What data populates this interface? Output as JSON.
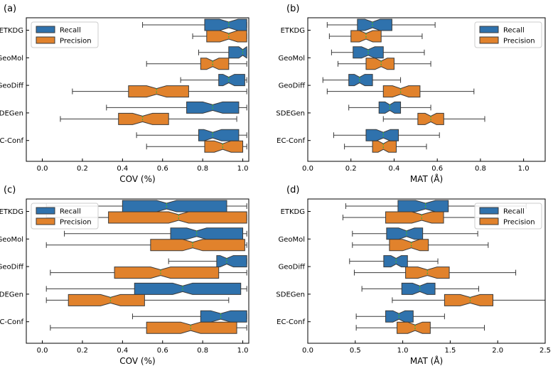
{
  "colors": {
    "recall": "#2f72ad",
    "precision": "#e1822c",
    "median": "#3db13d"
  },
  "chart_data": [
    {
      "type": "boxplot",
      "panel": "(a)",
      "xlabel": "COV (%)",
      "xlim": [
        -0.08,
        1.03
      ],
      "xticks": [
        0.0,
        0.2,
        0.4,
        0.6,
        0.8,
        1.0
      ],
      "xtick_labels": [
        "0.0",
        "0.2",
        "0.4",
        "0.6",
        "0.8",
        "1.0"
      ],
      "categories": [
        "ETKDG",
        "GeoMol",
        "GeoDiff",
        "SDEGen",
        "EC-Conf"
      ],
      "legend": {
        "labels": [
          "Recall",
          "Precision"
        ],
        "position": "top-left"
      },
      "series": [
        {
          "name": "Recall",
          "boxes": [
            {
              "wl": 0.5,
              "q1": 0.81,
              "med": 0.93,
              "q3": 1.02,
              "wh": 1.02
            },
            {
              "wl": 0.78,
              "q1": 0.93,
              "med": 1.0,
              "q3": 1.02,
              "wh": 1.02
            },
            {
              "wl": 0.69,
              "q1": 0.88,
              "med": 0.93,
              "q3": 1.01,
              "wh": 1.02
            },
            {
              "wl": 0.32,
              "q1": 0.72,
              "med": 0.85,
              "q3": 0.98,
              "wh": 1.02
            },
            {
              "wl": 0.47,
              "q1": 0.78,
              "med": 0.85,
              "q3": 0.98,
              "wh": 1.02
            }
          ]
        },
        {
          "name": "Precision",
          "boxes": [
            {
              "wl": 0.75,
              "q1": 0.82,
              "med": 0.93,
              "q3": 1.02,
              "wh": 1.02
            },
            {
              "wl": 0.52,
              "q1": 0.79,
              "med": 0.85,
              "q3": 0.93,
              "wh": 1.02
            },
            {
              "wl": 0.15,
              "q1": 0.43,
              "med": 0.57,
              "q3": 0.73,
              "wh": 1.02
            },
            {
              "wl": 0.09,
              "q1": 0.38,
              "med": 0.5,
              "q3": 0.63,
              "wh": 0.97
            },
            {
              "wl": 0.52,
              "q1": 0.81,
              "med": 0.9,
              "q3": 1.0,
              "wh": 1.02
            }
          ]
        }
      ]
    },
    {
      "type": "boxplot",
      "panel": "(b)",
      "xlabel": "MAT (Å)",
      "xlim": [
        0.0,
        1.1
      ],
      "xticks": [
        0.0,
        0.2,
        0.4,
        0.6,
        0.8,
        1.0
      ],
      "xtick_labels": [
        "0.0",
        "0.2",
        "0.4",
        "0.6",
        "0.8",
        "1.0"
      ],
      "categories": [
        "ETKDG",
        "GeoMol",
        "GeoDiff",
        "SDEGen",
        "EC-Conf"
      ],
      "legend": {
        "labels": [
          "Recall",
          "Precision"
        ],
        "position": "top-right"
      },
      "series": [
        {
          "name": "Recall",
          "boxes": [
            {
              "wl": 0.09,
              "q1": 0.23,
              "med": 0.3,
              "q3": 0.39,
              "wh": 0.59
            },
            {
              "wl": 0.11,
              "q1": 0.21,
              "med": 0.28,
              "q3": 0.35,
              "wh": 0.54
            },
            {
              "wl": 0.07,
              "q1": 0.19,
              "med": 0.24,
              "q3": 0.3,
              "wh": 0.43
            },
            {
              "wl": 0.19,
              "q1": 0.33,
              "med": 0.38,
              "q3": 0.43,
              "wh": 0.57
            },
            {
              "wl": 0.12,
              "q1": 0.27,
              "med": 0.35,
              "q3": 0.42,
              "wh": 0.61
            }
          ]
        },
        {
          "name": "Precision",
          "boxes": [
            {
              "wl": 0.1,
              "q1": 0.2,
              "med": 0.27,
              "q3": 0.34,
              "wh": 0.53
            },
            {
              "wl": 0.14,
              "q1": 0.27,
              "med": 0.34,
              "q3": 0.4,
              "wh": 0.57
            },
            {
              "wl": 0.09,
              "q1": 0.35,
              "med": 0.43,
              "q3": 0.52,
              "wh": 0.77
            },
            {
              "wl": 0.35,
              "q1": 0.51,
              "med": 0.57,
              "q3": 0.63,
              "wh": 0.82
            },
            {
              "wl": 0.17,
              "q1": 0.3,
              "med": 0.35,
              "q3": 0.41,
              "wh": 0.55
            }
          ]
        }
      ]
    },
    {
      "type": "boxplot",
      "panel": "(c)",
      "xlabel": "COV (%)",
      "xlim": [
        -0.08,
        1.03
      ],
      "xticks": [
        0.0,
        0.2,
        0.4,
        0.6,
        0.8,
        1.0
      ],
      "xtick_labels": [
        "0.0",
        "0.2",
        "0.4",
        "0.6",
        "0.8",
        "1.0"
      ],
      "categories": [
        "ETKDG",
        "GeoMol",
        "GeoDiff",
        "SDEGen",
        "EC-Conf"
      ],
      "legend": {
        "labels": [
          "Recall",
          "Precision"
        ],
        "position": "top-left"
      },
      "series": [
        {
          "name": "Recall",
          "boxes": [
            {
              "wl": 0.02,
              "q1": 0.4,
              "med": 0.62,
              "q3": 0.92,
              "wh": 1.02
            },
            {
              "wl": 0.11,
              "q1": 0.64,
              "med": 0.77,
              "q3": 1.0,
              "wh": 1.02
            },
            {
              "wl": 0.63,
              "q1": 0.87,
              "med": 0.92,
              "q3": 1.02,
              "wh": 1.02
            },
            {
              "wl": 0.02,
              "q1": 0.46,
              "med": 0.7,
              "q3": 0.99,
              "wh": 1.02
            },
            {
              "wl": 0.45,
              "q1": 0.79,
              "med": 0.89,
              "q3": 1.02,
              "wh": 1.02
            }
          ]
        },
        {
          "name": "Precision",
          "boxes": [
            {
              "wl": 0.02,
              "q1": 0.33,
              "med": 0.68,
              "q3": 1.02,
              "wh": 1.02
            },
            {
              "wl": 0.02,
              "q1": 0.54,
              "med": 0.75,
              "q3": 1.01,
              "wh": 1.02
            },
            {
              "wl": 0.04,
              "q1": 0.36,
              "med": 0.59,
              "q3": 0.88,
              "wh": 1.02
            },
            {
              "wl": 0.02,
              "q1": 0.13,
              "med": 0.34,
              "q3": 0.51,
              "wh": 0.93
            },
            {
              "wl": 0.04,
              "q1": 0.52,
              "med": 0.74,
              "q3": 0.97,
              "wh": 1.02
            }
          ]
        }
      ]
    },
    {
      "type": "boxplot",
      "panel": "(d)",
      "xlabel": "MAT (Å)",
      "xlim": [
        0.0,
        2.5
      ],
      "xticks": [
        0.0,
        0.5,
        1.0,
        1.5,
        2.0,
        2.5
      ],
      "xtick_labels": [
        "0.0",
        "0.5",
        "1.0",
        "1.5",
        "2.0",
        "2.5"
      ],
      "categories": [
        "ETKDG",
        "GeoMol",
        "GeoDiff",
        "SDEGen",
        "EC-Conf"
      ],
      "legend": {
        "labels": [
          "Recall",
          "Precision"
        ],
        "position": "top-right"
      },
      "series": [
        {
          "name": "Recall",
          "boxes": [
            {
              "wl": 0.4,
              "q1": 0.95,
              "med": 1.24,
              "q3": 1.48,
              "wh": 2.3
            },
            {
              "wl": 0.47,
              "q1": 0.83,
              "med": 1.04,
              "q3": 1.21,
              "wh": 1.79
            },
            {
              "wl": 0.44,
              "q1": 0.8,
              "med": 0.93,
              "q3": 1.05,
              "wh": 1.37
            },
            {
              "wl": 0.57,
              "q1": 0.99,
              "med": 1.18,
              "q3": 1.34,
              "wh": 1.8
            },
            {
              "wl": 0.51,
              "q1": 0.82,
              "med": 0.96,
              "q3": 1.11,
              "wh": 1.44
            }
          ]
        },
        {
          "name": "Precision",
          "boxes": [
            {
              "wl": 0.37,
              "q1": 0.82,
              "med": 1.2,
              "q3": 1.43,
              "wh": 2.0
            },
            {
              "wl": 0.47,
              "q1": 0.86,
              "med": 1.09,
              "q3": 1.27,
              "wh": 1.9
            },
            {
              "wl": 0.49,
              "q1": 1.03,
              "med": 1.26,
              "q3": 1.49,
              "wh": 2.19
            },
            {
              "wl": 0.89,
              "q1": 1.44,
              "med": 1.71,
              "q3": 1.95,
              "wh": 2.6
            },
            {
              "wl": 0.51,
              "q1": 0.94,
              "med": 1.13,
              "q3": 1.29,
              "wh": 1.86
            }
          ]
        }
      ]
    }
  ]
}
